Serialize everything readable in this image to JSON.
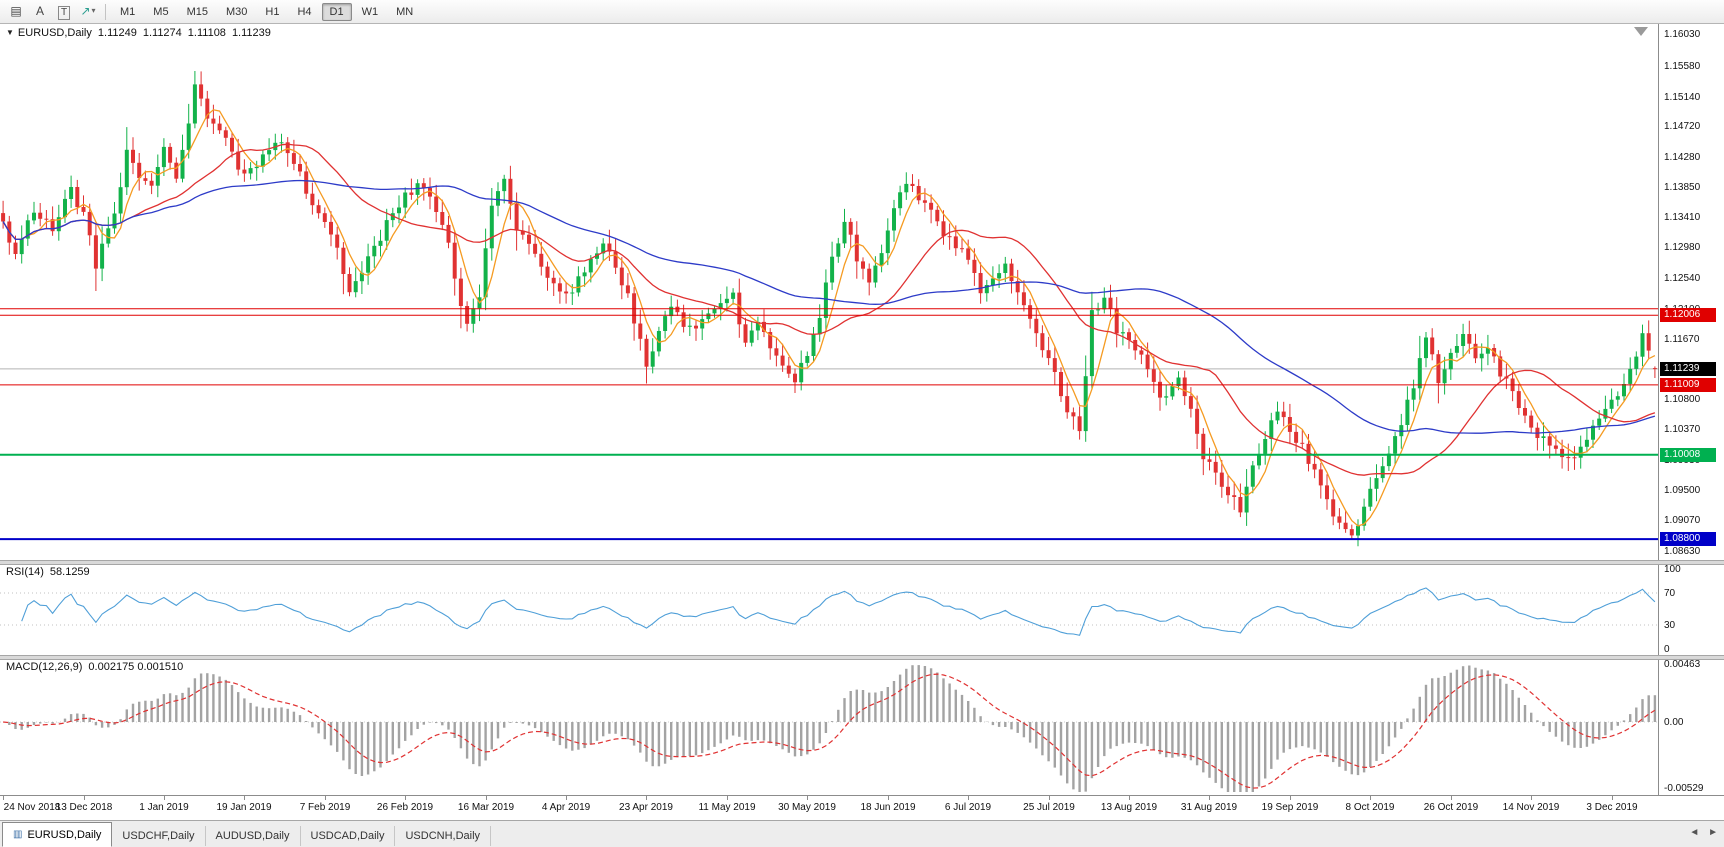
{
  "toolbar": {
    "tools": [
      {
        "name": "charts-grid-button",
        "glyph": "▤"
      },
      {
        "name": "cursor-tool-button",
        "glyph": "A"
      },
      {
        "name": "text-tool-button",
        "glyph": "T",
        "boxed": true
      },
      {
        "name": "objects-tool-button",
        "glyph": "↗",
        "caret": "▾"
      }
    ],
    "timeframes": [
      "M1",
      "M5",
      "M15",
      "M30",
      "H1",
      "H4",
      "D1",
      "W1",
      "MN"
    ],
    "active_timeframe": "D1"
  },
  "chart_header": {
    "menu_triangle": "▼",
    "symbol": "EURUSD,Daily",
    "open": "1.11249",
    "high": "1.11274",
    "low": "1.11108",
    "close": "1.11239"
  },
  "price_axis": {
    "labels": [
      "1.16030",
      "1.15580",
      "1.15140",
      "1.14720",
      "1.14280",
      "1.13850",
      "1.13410",
      "1.12980",
      "1.12540",
      "1.12100",
      "1.11670",
      "1.10800",
      "1.10370",
      "1.09930",
      "1.09500",
      "1.09070",
      "1.08630"
    ],
    "current": {
      "label": "1.11239",
      "price": 1.11239,
      "bg": "#000000",
      "fg": "#ffffff",
      "line_color": "#b3b3b3"
    },
    "levels": [
      {
        "price": 1.121,
        "color": "#e00000",
        "width": 1
      },
      {
        "price": 1.12006,
        "color": "#e00000",
        "width": 1,
        "label": "1.12006",
        "badge_bg": "#e00000"
      },
      {
        "price": 1.11009,
        "color": "#e00000",
        "width": 1,
        "label": "1.11009",
        "badge_bg": "#e00000"
      },
      {
        "price": 1.10008,
        "color": "#00b050",
        "width": 2,
        "label": "1.10008",
        "badge_bg": "#00b050"
      },
      {
        "price": 1.088,
        "color": "#0000c8",
        "width": 2,
        "label": "1.08800",
        "badge_bg": "#0000c8"
      }
    ]
  },
  "rsi": {
    "label": "RSI(14)",
    "value": "58.1259",
    "color": "#4f9fd8",
    "ticks": [
      {
        "text": "100",
        "v": 100
      },
      {
        "text": "70",
        "v": 70
      },
      {
        "text": "30",
        "v": 30
      },
      {
        "text": "0",
        "v": 0
      }
    ],
    "levels": [
      70,
      30
    ]
  },
  "macd": {
    "label": "MACD(12,26,9)",
    "values": "0.002175 0.001510",
    "histogram_color": "#a3a3a3",
    "signal_color": "#e03232",
    "ticks": [
      {
        "text": "0.00463",
        "v": 0.00463
      },
      {
        "text": "0.00",
        "v": 0
      },
      {
        "text": "-0.00529",
        "v": -0.00529
      }
    ]
  },
  "date_axis": {
    "labels": [
      {
        "text": "24 Nov 2018",
        "i": 0
      },
      {
        "text": "13 Dec 2018",
        "i": 13
      },
      {
        "text": "1 Jan 2019",
        "i": 26
      },
      {
        "text": "19 Jan 2019",
        "i": 39
      },
      {
        "text": "7 Feb 2019",
        "i": 52
      },
      {
        "text": "26 Feb 2019",
        "i": 65
      },
      {
        "text": "16 Mar 2019",
        "i": 78
      },
      {
        "text": "4 Apr 2019",
        "i": 91
      },
      {
        "text": "23 Apr 2019",
        "i": 104
      },
      {
        "text": "11 May 2019",
        "i": 117
      },
      {
        "text": "30 May 2019",
        "i": 130
      },
      {
        "text": "18 Jun 2019",
        "i": 143
      },
      {
        "text": "6 Jul 2019",
        "i": 156
      },
      {
        "text": "25 Jul 2019",
        "i": 169
      },
      {
        "text": "13 Aug 2019",
        "i": 182
      },
      {
        "text": "31 Aug 2019",
        "i": 195
      },
      {
        "text": "19 Sep 2019",
        "i": 208
      },
      {
        "text": "8 Oct 2019",
        "i": 221
      },
      {
        "text": "26 Oct 2019",
        "i": 234
      },
      {
        "text": "14 Nov 2019",
        "i": 247
      },
      {
        "text": "3 Dec 2019",
        "i": 260
      }
    ]
  },
  "tab_bar": {
    "items": [
      {
        "label": "EURUSD,Daily",
        "active": true
      },
      {
        "label": "USDCHF,Daily",
        "active": false
      },
      {
        "label": "AUDUSD,Daily",
        "active": false
      },
      {
        "label": "USDCAD,Daily",
        "active": false
      },
      {
        "label": "USDCNH,Daily",
        "active": false
      }
    ],
    "active_icon": "▥",
    "scroll_left": "◄",
    "scroll_right": "►"
  },
  "chart_data": {
    "type": "candlestick",
    "symbol": "EURUSD",
    "timeframe": "Daily",
    "ohlc_current": {
      "open": 1.11249,
      "high": 1.11274,
      "low": 1.11108,
      "close": 1.11239
    },
    "y_range": [
      1.085,
      1.1618
    ],
    "x_range": [
      "24 Nov 2018",
      "13 Dec 2019"
    ],
    "num_candles": 268,
    "colors": {
      "up": "#12b24a",
      "down": "#e03232"
    },
    "moving_averages": [
      {
        "period": 5,
        "color": "#f59b22"
      },
      {
        "period": 21,
        "color": "#e03232"
      },
      {
        "period": 55,
        "color": "#2d3bc8"
      }
    ],
    "horizontal_levels": [
      1.121,
      1.12006,
      1.11009,
      1.10008,
      1.088
    ],
    "rsi_range": [
      0,
      100
    ],
    "macd_range": [
      -0.00529,
      0.00463
    ],
    "price_path_anchors": [
      [
        0,
        1.1335
      ],
      [
        2,
        1.129
      ],
      [
        5,
        1.1355
      ],
      [
        8,
        1.132
      ],
      [
        11,
        1.138
      ],
      [
        13,
        1.1345
      ],
      [
        15,
        1.127
      ],
      [
        18,
        1.135
      ],
      [
        20,
        1.143
      ],
      [
        22,
        1.1405
      ],
      [
        24,
        1.139
      ],
      [
        26,
        1.144
      ],
      [
        28,
        1.14
      ],
      [
        30,
        1.147
      ],
      [
        31,
        1.153
      ],
      [
        33,
        1.148
      ],
      [
        35,
        1.1465
      ],
      [
        37,
        1.143
      ],
      [
        39,
        1.14
      ],
      [
        41,
        1.142
      ],
      [
        43,
        1.1445
      ],
      [
        45,
        1.1455
      ],
      [
        47,
        1.142
      ],
      [
        49,
        1.138
      ],
      [
        52,
        1.133
      ],
      [
        54,
        1.129
      ],
      [
        56,
        1.124
      ],
      [
        58,
        1.1265
      ],
      [
        60,
        1.13
      ],
      [
        62,
        1.133
      ],
      [
        65,
        1.137
      ],
      [
        68,
        1.139
      ],
      [
        70,
        1.135
      ],
      [
        72,
        1.13
      ],
      [
        74,
        1.121
      ],
      [
        75,
        1.119
      ],
      [
        77,
        1.123
      ],
      [
        79,
        1.135
      ],
      [
        81,
        1.14
      ],
      [
        83,
        1.133
      ],
      [
        85,
        1.13
      ],
      [
        87,
        1.127
      ],
      [
        89,
        1.125
      ],
      [
        91,
        1.123
      ],
      [
        93,
        1.125
      ],
      [
        95,
        1.128
      ],
      [
        97,
        1.13
      ],
      [
        99,
        1.127
      ],
      [
        101,
        1.123
      ],
      [
        103,
        1.116
      ],
      [
        104,
        1.112
      ],
      [
        106,
        1.118
      ],
      [
        108,
        1.121
      ],
      [
        110,
        1.119
      ],
      [
        112,
        1.1175
      ],
      [
        114,
        1.12
      ],
      [
        116,
        1.122
      ],
      [
        118,
        1.123
      ],
      [
        120,
        1.116
      ],
      [
        122,
        1.1185
      ],
      [
        124,
        1.116
      ],
      [
        126,
        1.113
      ],
      [
        128,
        1.111
      ],
      [
        130,
        1.114
      ],
      [
        132,
        1.12
      ],
      [
        134,
        1.128
      ],
      [
        136,
        1.134
      ],
      [
        138,
        1.128
      ],
      [
        140,
        1.125
      ],
      [
        142,
        1.129
      ],
      [
        144,
        1.135
      ],
      [
        146,
        1.139
      ],
      [
        148,
        1.137
      ],
      [
        150,
        1.1355
      ],
      [
        152,
        1.132
      ],
      [
        154,
        1.13
      ],
      [
        156,
        1.128
      ],
      [
        158,
        1.124
      ],
      [
        160,
        1.126
      ],
      [
        162,
        1.127
      ],
      [
        164,
        1.124
      ],
      [
        166,
        1.12
      ],
      [
        168,
        1.115
      ],
      [
        170,
        1.112
      ],
      [
        172,
        1.106
      ],
      [
        174,
        1.104
      ],
      [
        176,
        1.12
      ],
      [
        178,
        1.123
      ],
      [
        180,
        1.118
      ],
      [
        182,
        1.117
      ],
      [
        184,
        1.114
      ],
      [
        186,
        1.11
      ],
      [
        188,
        1.108
      ],
      [
        190,
        1.111
      ],
      [
        192,
        1.106
      ],
      [
        194,
        1.1
      ],
      [
        196,
        1.098
      ],
      [
        198,
        1.094
      ],
      [
        200,
        1.0925
      ],
      [
        202,
        1.099
      ],
      [
        204,
        1.103
      ],
      [
        206,
        1.107
      ],
      [
        208,
        1.104
      ],
      [
        210,
        1.101
      ],
      [
        212,
        1.098
      ],
      [
        214,
        1.094
      ],
      [
        216,
        1.09
      ],
      [
        218,
        1.088
      ],
      [
        220,
        1.093
      ],
      [
        222,
        1.096
      ],
      [
        224,
        1.1
      ],
      [
        226,
        1.105
      ],
      [
        228,
        1.11
      ],
      [
        230,
        1.1165
      ],
      [
        232,
        1.111
      ],
      [
        234,
        1.114
      ],
      [
        236,
        1.117
      ],
      [
        238,
        1.114
      ],
      [
        240,
        1.115
      ],
      [
        242,
        1.112
      ],
      [
        244,
        1.109
      ],
      [
        246,
        1.106
      ],
      [
        248,
        1.103
      ],
      [
        250,
        1.101
      ],
      [
        252,
        1.0995
      ],
      [
        254,
        1.1
      ],
      [
        256,
        1.103
      ],
      [
        258,
        1.106
      ],
      [
        260,
        1.108
      ],
      [
        262,
        1.1105
      ],
      [
        264,
        1.114
      ],
      [
        265,
        1.1175
      ],
      [
        266,
        1.115
      ],
      [
        267,
        1.11239
      ]
    ]
  }
}
